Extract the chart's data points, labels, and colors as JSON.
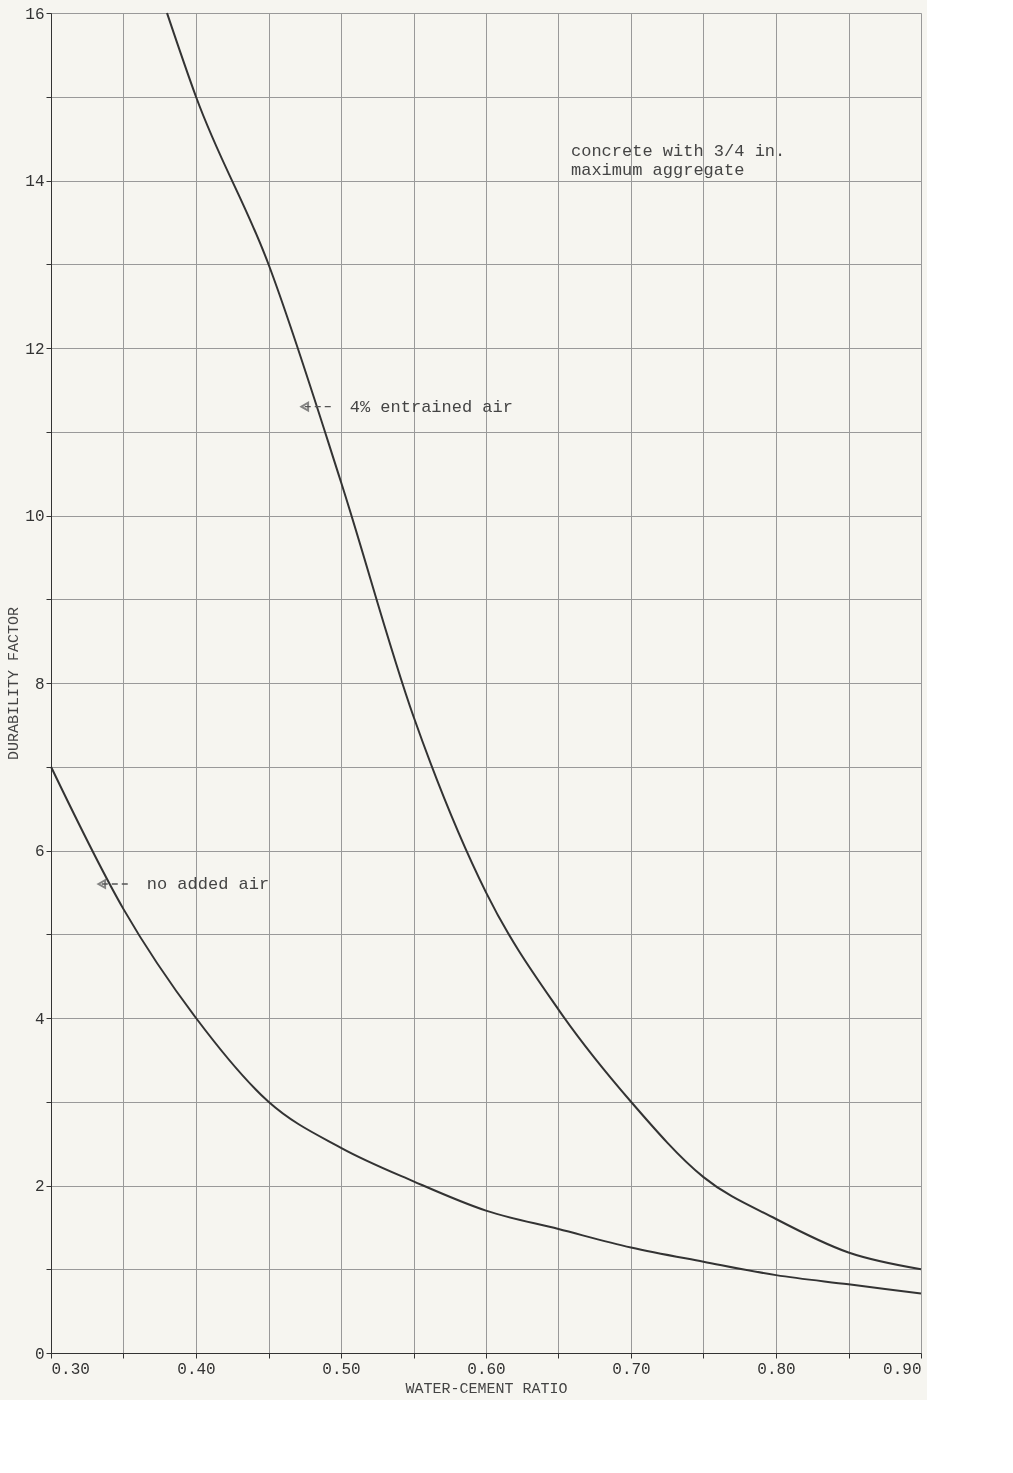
{
  "chart_data": {
    "type": "line",
    "xlabel": "WATER-CEMENT RATIO",
    "ylabel": "DURABILITY FACTOR",
    "series": [
      {
        "color": "#333333",
        "x": [
          0.38,
          0.4,
          0.45,
          0.5,
          0.55,
          0.6,
          0.65,
          0.7,
          0.75,
          0.8,
          0.85,
          0.9
        ],
        "values": [
          16,
          15,
          13,
          10.4,
          7.6,
          5.5,
          4.1,
          3.0,
          2.1,
          1.6,
          1.2,
          1.0
        ]
      },
      {
        "color": "#333333",
        "x": [
          0.3,
          0.35,
          0.4,
          0.45,
          0.5,
          0.55,
          0.6,
          0.65,
          0.7,
          0.75,
          0.8,
          0.85,
          0.9
        ],
        "values": [
          7.0,
          5.3,
          4.0,
          3.0,
          2.45,
          2.05,
          1.7,
          1.48,
          1.26,
          1.09,
          0.93,
          0.82,
          0.71
        ]
      }
    ],
    "annotations": [
      {
        "text": "4% entrained air",
        "x": 0.475,
        "y": 11.3
      },
      {
        "text": "no added air",
        "x": 0.335,
        "y": 5.6
      },
      "concrete with 3/4 in.\nmaximum aggregate"
    ],
    "xlim": [
      0.3,
      0.9
    ],
    "ylim": [
      0,
      16
    ],
    "xticks": [
      {
        "value": 0.3,
        "label": "0.30"
      },
      {
        "value": 0.35,
        "label": null
      },
      {
        "value": 0.4,
        "label": "0.40"
      },
      {
        "value": 0.45,
        "label": null
      },
      {
        "value": 0.5,
        "label": "0.50"
      },
      {
        "value": 0.55,
        "label": null
      },
      {
        "value": 0.6,
        "label": "0.60"
      },
      {
        "value": 0.65,
        "label": null
      },
      {
        "value": 0.7,
        "label": "0.70"
      },
      {
        "value": 0.75,
        "label": null
      },
      {
        "value": 0.8,
        "label": "0.80"
      },
      {
        "value": 0.85,
        "label": null
      },
      {
        "value": 0.9,
        "label": "0.90"
      }
    ],
    "yticks": [
      0,
      {
        "value": 1,
        "label": null
      },
      2,
      {
        "value": 3,
        "label": null
      },
      4,
      {
        "value": 5,
        "label": null
      },
      6,
      {
        "value": 7,
        "label": null
      },
      8,
      {
        "value": 9,
        "label": null
      },
      10,
      {
        "value": 11,
        "label": null
      },
      12,
      {
        "value": 13,
        "label": null
      },
      14,
      {
        "value": 15,
        "label": null
      },
      16
    ],
    "grid": true,
    "line_style": "solid",
    "marker": "none"
  }
}
